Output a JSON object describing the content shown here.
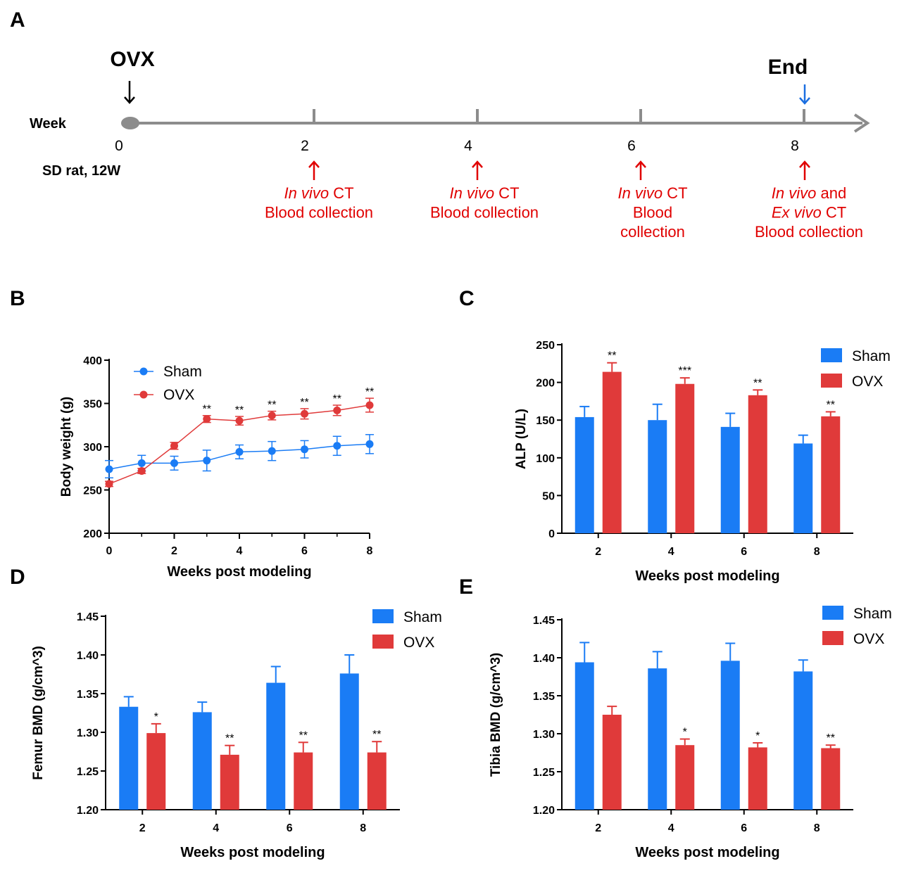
{
  "colors": {
    "sham": "#1a7cf5",
    "ovx": "#e03a3a",
    "axis": "#000000",
    "timeline": "#8c8c8c",
    "end": "#1a6ee0",
    "annotation": "#e00000"
  },
  "panels": {
    "A": {
      "label": "A"
    },
    "B": {
      "label": "B"
    },
    "C": {
      "label": "C"
    },
    "D": {
      "label": "D"
    },
    "E": {
      "label": "E"
    }
  },
  "timeline": {
    "start_label": "OVX",
    "end_label": "End",
    "axis_label": "Week",
    "ticks": [
      "0",
      "2",
      "4",
      "6",
      "8"
    ],
    "subject": "SD rat, 12W",
    "events": [
      {
        "week": "2",
        "lines": [
          {
            "italic": "In vivo",
            "rest": " CT"
          },
          {
            "italic": "",
            "rest": "Blood collection"
          }
        ]
      },
      {
        "week": "4",
        "lines": [
          {
            "italic": "In vivo",
            "rest": " CT"
          },
          {
            "italic": "",
            "rest": "Blood collection"
          }
        ]
      },
      {
        "week": "6",
        "lines": [
          {
            "italic": "In vivo",
            "rest": " CT"
          },
          {
            "italic": "",
            "rest": "Blood"
          },
          {
            "italic": "",
            "rest": "collection"
          }
        ]
      },
      {
        "week": "8",
        "lines": [
          {
            "italic": "In vivo",
            "rest": " and"
          },
          {
            "italic": "Ex vivo",
            "rest": " CT"
          },
          {
            "italic": "",
            "rest": "Blood collection"
          }
        ]
      }
    ]
  },
  "chart_data": [
    {
      "panel": "B",
      "type": "line",
      "xlabel": "Weeks post modeling",
      "ylabel": "Body weight (g)",
      "xlim": [
        0,
        8
      ],
      "ylim": [
        200,
        400
      ],
      "xticks": [
        "0",
        "2",
        "4",
        "6",
        "8"
      ],
      "yticks": [
        "200",
        "250",
        "300",
        "350",
        "400"
      ],
      "legend": "top-left",
      "x": [
        0,
        1,
        2,
        3,
        4,
        5,
        6,
        7,
        8
      ],
      "series": [
        {
          "name": "Sham",
          "values": [
            274,
            281,
            281,
            284,
            294,
            295,
            297,
            301,
            303
          ],
          "errors": [
            10,
            9,
            8,
            12,
            8,
            11,
            10,
            11,
            11
          ]
        },
        {
          "name": "OVX",
          "values": [
            257,
            272,
            301,
            332,
            330,
            336,
            338,
            342,
            348
          ],
          "errors": [
            3,
            3,
            4,
            4,
            5,
            5,
            6,
            6,
            8
          ]
        }
      ],
      "annotations": [
        "",
        "",
        "",
        "**",
        "**",
        "**",
        "**",
        "**",
        "**"
      ]
    },
    {
      "panel": "C",
      "type": "bar",
      "xlabel": "Weeks post modeling",
      "ylabel": "ALP (U/L)",
      "categories": [
        "2",
        "4",
        "6",
        "8"
      ],
      "ylim": [
        0,
        250
      ],
      "yticks": [
        "0",
        "50",
        "100",
        "150",
        "200",
        "250"
      ],
      "legend": "top-right",
      "series": [
        {
          "name": "Sham",
          "values": [
            154,
            150,
            141,
            119
          ],
          "errors": [
            14,
            21,
            18,
            11
          ]
        },
        {
          "name": "OVX",
          "values": [
            214,
            198,
            183,
            155
          ],
          "errors": [
            12,
            8,
            7,
            6
          ]
        }
      ],
      "annotations": [
        "**",
        "***",
        "**",
        "**"
      ]
    },
    {
      "panel": "D",
      "type": "bar",
      "xlabel": "Weeks post modeling",
      "ylabel": "Femur BMD (g/cm^3)",
      "categories": [
        "2",
        "4",
        "6",
        "8"
      ],
      "ylim": [
        1.2,
        1.45
      ],
      "yticks": [
        "1.20",
        "1.25",
        "1.30",
        "1.35",
        "1.40",
        "1.45"
      ],
      "legend": "top-right",
      "series": [
        {
          "name": "Sham",
          "values": [
            1.333,
            1.326,
            1.364,
            1.376
          ],
          "errors": [
            0.013,
            0.013,
            0.021,
            0.024
          ]
        },
        {
          "name": "OVX",
          "values": [
            1.299,
            1.271,
            1.274,
            1.274
          ],
          "errors": [
            0.012,
            0.012,
            0.013,
            0.014
          ]
        }
      ],
      "annotations": [
        "*",
        "**",
        "**",
        "**"
      ]
    },
    {
      "panel": "E",
      "type": "bar",
      "xlabel": "Weeks post modeling",
      "ylabel": "Tibia BMD (g/cm^3)",
      "categories": [
        "2",
        "4",
        "6",
        "8"
      ],
      "ylim": [
        1.2,
        1.45
      ],
      "yticks": [
        "1.20",
        "1.25",
        "1.30",
        "1.35",
        "1.40",
        "1.45"
      ],
      "legend": "top-right",
      "series": [
        {
          "name": "Sham",
          "values": [
            1.394,
            1.386,
            1.396,
            1.382
          ],
          "errors": [
            0.026,
            0.022,
            0.023,
            0.015
          ]
        },
        {
          "name": "OVX",
          "values": [
            1.325,
            1.285,
            1.282,
            1.281
          ],
          "errors": [
            0.011,
            0.008,
            0.006,
            0.004
          ]
        }
      ],
      "annotations": [
        "",
        "*",
        "*",
        "**"
      ]
    }
  ]
}
